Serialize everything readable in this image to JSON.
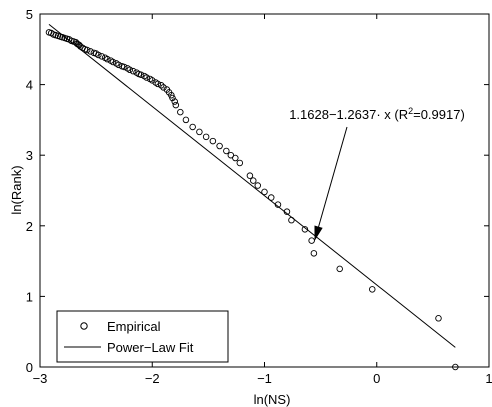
{
  "chart_data": {
    "type": "scatter",
    "xlabel": "ln(NS)",
    "ylabel": "ln(Rank)",
    "xlim": [
      -3,
      1
    ],
    "ylim": [
      0,
      5
    ],
    "xticks": [
      -3,
      -2,
      -1,
      0,
      1
    ],
    "yticks": [
      0,
      1,
      2,
      3,
      4,
      5
    ],
    "x_tick_labels": [
      "−3",
      "−2",
      "−1",
      "0",
      "1"
    ],
    "y_tick_labels": [
      "0",
      "1",
      "2",
      "3",
      "4",
      "5"
    ],
    "grid": false,
    "legend_position": "bottom-left",
    "series": [
      {
        "name": "Empirical",
        "style": "open-circle-markers",
        "color": "#000000",
        "points": [
          [
            -2.92,
            4.74
          ],
          [
            -2.9,
            4.73
          ],
          [
            -2.88,
            4.71
          ],
          [
            -2.86,
            4.7
          ],
          [
            -2.84,
            4.69
          ],
          [
            -2.82,
            4.68
          ],
          [
            -2.8,
            4.67
          ],
          [
            -2.78,
            4.66
          ],
          [
            -2.76,
            4.65
          ],
          [
            -2.74,
            4.64
          ],
          [
            -2.72,
            4.62
          ],
          [
            -2.7,
            4.61
          ],
          [
            -2.68,
            4.6
          ],
          [
            -2.67,
            4.58
          ],
          [
            -2.66,
            4.57
          ],
          [
            -2.65,
            4.56
          ],
          [
            -2.64,
            4.54
          ],
          [
            -2.62,
            4.52
          ],
          [
            -2.6,
            4.5
          ],
          [
            -2.58,
            4.49
          ],
          [
            -2.55,
            4.47
          ],
          [
            -2.52,
            4.45
          ],
          [
            -2.5,
            4.44
          ],
          [
            -2.48,
            4.42
          ],
          [
            -2.45,
            4.4
          ],
          [
            -2.42,
            4.38
          ],
          [
            -2.4,
            4.36
          ],
          [
            -2.37,
            4.34
          ],
          [
            -2.35,
            4.32
          ],
          [
            -2.32,
            4.3
          ],
          [
            -2.3,
            4.28
          ],
          [
            -2.27,
            4.26
          ],
          [
            -2.25,
            4.25
          ],
          [
            -2.22,
            4.23
          ],
          [
            -2.2,
            4.21
          ],
          [
            -2.17,
            4.19
          ],
          [
            -2.14,
            4.17
          ],
          [
            -2.12,
            4.15
          ],
          [
            -2.1,
            4.14
          ],
          [
            -2.07,
            4.12
          ],
          [
            -2.05,
            4.1
          ],
          [
            -2.02,
            4.08
          ],
          [
            -2.0,
            4.06
          ],
          [
            -1.97,
            4.03
          ],
          [
            -1.95,
            4.01
          ],
          [
            -1.92,
            3.99
          ],
          [
            -1.9,
            3.96
          ],
          [
            -1.87,
            3.93
          ],
          [
            -1.85,
            3.89
          ],
          [
            -1.83,
            3.85
          ],
          [
            -1.82,
            3.81
          ],
          [
            -1.8,
            3.76
          ],
          [
            -1.79,
            3.71
          ],
          [
            -1.75,
            3.61
          ],
          [
            -1.7,
            3.5
          ],
          [
            -1.64,
            3.4
          ],
          [
            -1.58,
            3.33
          ],
          [
            -1.52,
            3.26
          ],
          [
            -1.46,
            3.2
          ],
          [
            -1.4,
            3.13
          ],
          [
            -1.34,
            3.06
          ],
          [
            -1.3,
            3.0
          ],
          [
            -1.26,
            2.96
          ],
          [
            -1.22,
            2.89
          ],
          [
            -1.13,
            2.71
          ],
          [
            -1.1,
            2.64
          ],
          [
            -1.06,
            2.57
          ],
          [
            -1.0,
            2.48
          ],
          [
            -0.94,
            2.4
          ],
          [
            -0.88,
            2.3
          ],
          [
            -0.8,
            2.2
          ],
          [
            -0.76,
            2.08
          ],
          [
            -0.64,
            1.95
          ],
          [
            -0.58,
            1.79
          ],
          [
            -0.56,
            1.61
          ],
          [
            -0.33,
            1.39
          ],
          [
            -0.04,
            1.1
          ],
          [
            0.55,
            0.69
          ],
          [
            0.7,
            0.0
          ]
        ]
      },
      {
        "name": "Power−Law Fit",
        "style": "solid-line",
        "color": "#000000",
        "intercept": 1.1628,
        "slope": -1.2637,
        "x_range": [
          -2.92,
          0.7
        ]
      }
    ],
    "annotations": [
      {
        "text": "1.1628−1.2637· x (R²=0.9917)",
        "arrow_to": [
          -0.55,
          1.81
        ]
      }
    ]
  },
  "legend": {
    "items": [
      {
        "label": "Empirical",
        "marker": "circle"
      },
      {
        "label": "Power−Law Fit",
        "marker": "line"
      }
    ]
  }
}
